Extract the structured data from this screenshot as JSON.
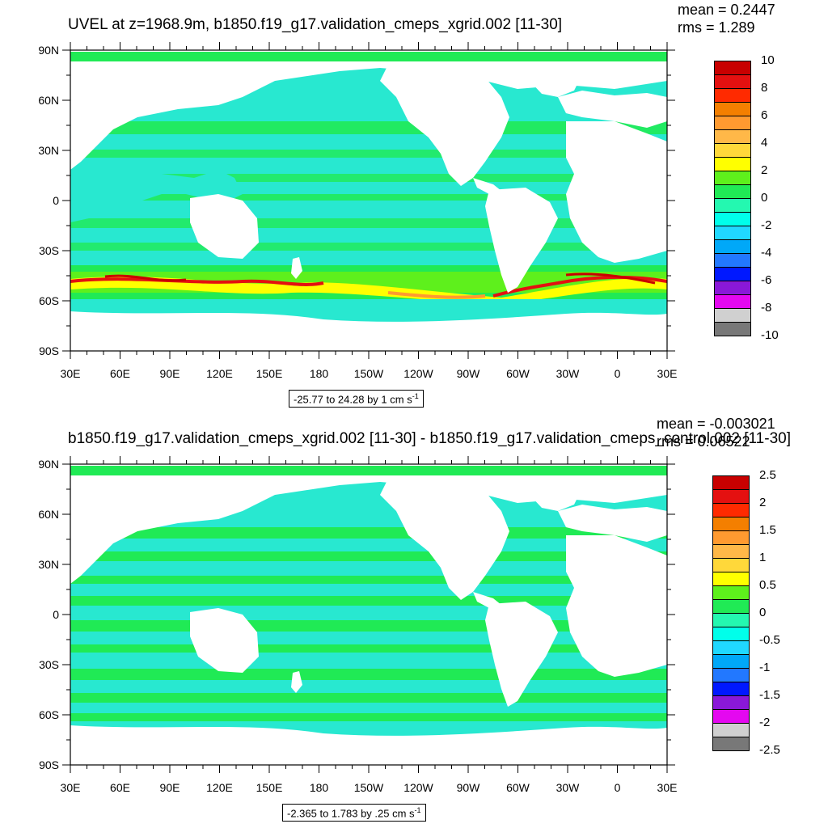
{
  "panels": [
    {
      "title": "UVEL at z=1968.9m, b1850.f19_g17.validation_cmeps_xgrid.002 [11-30]",
      "mean": "mean = 0.2447",
      "rms": "rms = 1.289",
      "range_label_main": "-25.77 to 24.28 by 1 cm s",
      "range_label_sup": "-1",
      "colorbar_labels": [
        "10",
        "8",
        "6",
        "4",
        "2",
        "0",
        "-2",
        "-4",
        "-6",
        "-8",
        "-10"
      ],
      "colorbar_colors": [
        "#c80000",
        "#e41010",
        "#ff2a00",
        "#f47f00",
        "#ff9a30",
        "#ffb848",
        "#ffd83a",
        "#ffff00",
        "#5ef01c",
        "#20ea55",
        "#24f8b0",
        "#00ffea",
        "#20d8ff",
        "#00a8f8",
        "#2278ff",
        "#0018ff",
        "#8a18d8",
        "#e408f0",
        "#d0d0d0",
        "#787878"
      ]
    },
    {
      "title": "b1850.f19_g17.validation_cmeps_xgrid.002 [11-30] - b1850.f19_g17.validation_cmeps_control.002 [11-30]",
      "mean": "mean = -0.003021",
      "rms": "rms = 0.06522",
      "range_label_main": "-2.365 to 1.783 by .25 cm s",
      "range_label_sup": "-1",
      "colorbar_labels": [
        "2.5",
        "2",
        "1.5",
        "1",
        "0.5",
        "0",
        "-0.5",
        "-1",
        "-1.5",
        "-2",
        "-2.5"
      ],
      "colorbar_colors": [
        "#c80000",
        "#e41010",
        "#ff2a00",
        "#f47f00",
        "#ff9a30",
        "#ffb848",
        "#ffd83a",
        "#ffff00",
        "#5ef01c",
        "#20ea55",
        "#24f8b0",
        "#00ffea",
        "#20d8ff",
        "#00a8f8",
        "#2278ff",
        "#0018ff",
        "#8a18d8",
        "#e408f0",
        "#d0d0d0",
        "#787878"
      ]
    }
  ],
  "axes": {
    "lat_labels": [
      "90N",
      "60N",
      "30N",
      "0",
      "30S",
      "60S",
      "90S"
    ],
    "lon_labels": [
      "30E",
      "60E",
      "90E",
      "120E",
      "150E",
      "180",
      "150W",
      "120W",
      "90W",
      "60W",
      "30W",
      "0",
      "30E"
    ]
  },
  "colors": {
    "ocean_base": "#20f0c0",
    "ocean_teal": "#28e8d0",
    "land": "#ffffff"
  }
}
